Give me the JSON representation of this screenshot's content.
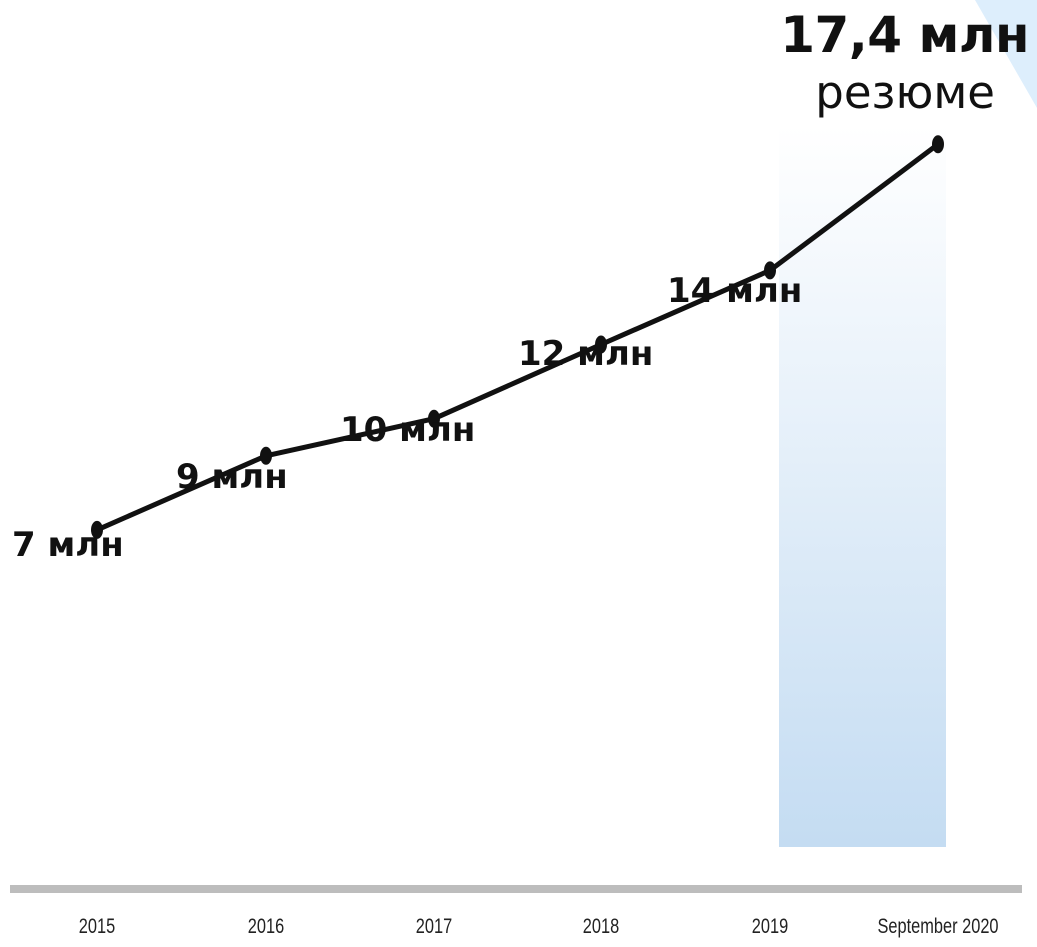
{
  "headline": {
    "value": "17,4 млн",
    "unit": "резюме"
  },
  "colors": {
    "line": "#111111",
    "highlight_top": "#ffffff",
    "highlight_bottom": "#c4dcf2",
    "axis": "#bdbdbd",
    "corner_accent": "#ddeefc"
  },
  "chart_data": {
    "type": "line",
    "categories": [
      "2015",
      "2016",
      "2017",
      "2018",
      "2019",
      "September 2020"
    ],
    "values": [
      7,
      9,
      10,
      12,
      14,
      17.4
    ],
    "point_labels": [
      "7 млн",
      "9 млн",
      "10 млн",
      "12 млн",
      "14 млн",
      ""
    ],
    "highlighted_category": "September 2020",
    "grid": false,
    "legend": "none",
    "title": "",
    "xlabel": "",
    "ylabel": ""
  }
}
